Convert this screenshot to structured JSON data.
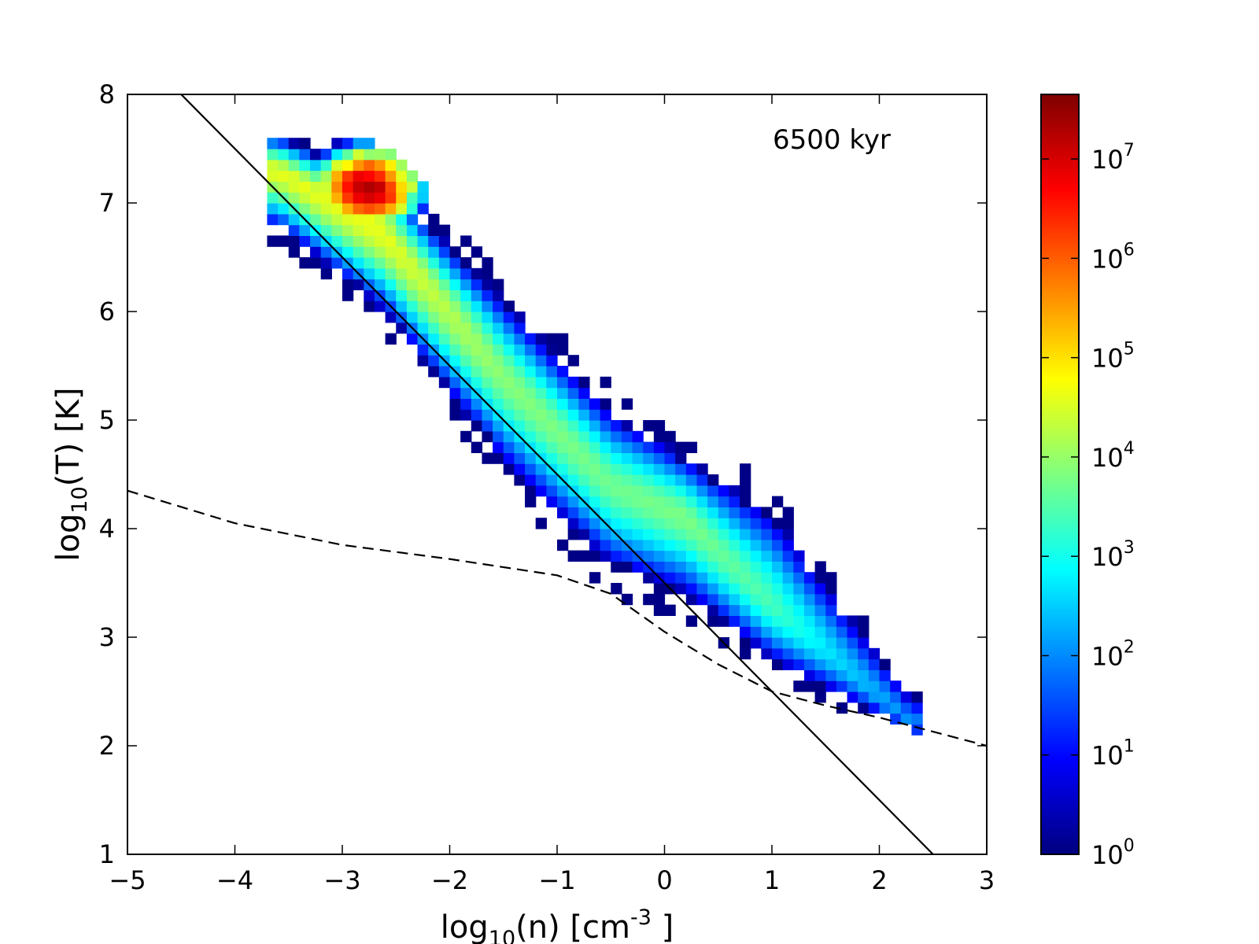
{
  "chart_data": {
    "type": "heatmap",
    "title": "",
    "annotation": "6500 kyr",
    "xlabel": {
      "base": "log",
      "sub": "10",
      "rest": "(n) [cm",
      "sup": "-3",
      "tail": " ]"
    },
    "ylabel": {
      "base": "log",
      "sub": "10",
      "rest": "(T) [K]"
    },
    "xlim": [
      -5,
      3
    ],
    "ylim": [
      1,
      8
    ],
    "xticks": [
      -5,
      -4,
      -3,
      -2,
      -1,
      0,
      1,
      2,
      3
    ],
    "xtick_labels": [
      "−5",
      "−4",
      "−3",
      "−2",
      "−1",
      "0",
      "1",
      "2",
      "3"
    ],
    "yticks": [
      1,
      2,
      3,
      4,
      5,
      6,
      7,
      8
    ],
    "ytick_labels": [
      "1",
      "2",
      "3",
      "4",
      "5",
      "6",
      "7",
      "8"
    ],
    "grid": false,
    "colorbar": {
      "scale": "log",
      "min_exponent": 0,
      "max_exponent": 7.65,
      "ticks": [
        {
          "base": "10",
          "exp": "0",
          "value": 0
        },
        {
          "base": "10",
          "exp": "1",
          "value": 1
        },
        {
          "base": "10",
          "exp": "2",
          "value": 2
        },
        {
          "base": "10",
          "exp": "3",
          "value": 3
        },
        {
          "base": "10",
          "exp": "4",
          "value": 4
        },
        {
          "base": "10",
          "exp": "5",
          "value": 5
        },
        {
          "base": "10",
          "exp": "6",
          "value": 6
        },
        {
          "base": "10",
          "exp": "7",
          "value": 7
        }
      ],
      "colormap": [
        "#00007f",
        "#0000ff",
        "#007fff",
        "#00ffff",
        "#7fff7f",
        "#ffff00",
        "#ff7f00",
        "#ff0000",
        "#7f0000"
      ]
    },
    "bin_size": [
      0.1,
      0.1
    ],
    "distribution": {
      "ridge": [
        [
          -3.6,
          7.3
        ],
        [
          -2.6,
          6.7
        ],
        [
          -1.5,
          5.4
        ],
        [
          -0.5,
          4.4
        ],
        [
          0.2,
          4.1
        ],
        [
          1.0,
          3.3
        ],
        [
          1.6,
          2.8
        ],
        [
          2.3,
          2.2
        ]
      ],
      "ridge_peak_log_count": [
        4.6,
        4.6,
        3.9,
        3.7,
        3.8,
        3.4,
        2.6,
        2.0
      ],
      "width_above": [
        0.35,
        0.55,
        0.75,
        0.72,
        0.6,
        0.9,
        0.6,
        0.25
      ],
      "width_below": [
        0.55,
        0.75,
        0.85,
        0.8,
        0.75,
        0.55,
        0.35,
        0.1
      ],
      "hot_peak": {
        "x": -2.75,
        "y": 7.15,
        "log_count": 7.3
      },
      "lower_edge_follows": "dashed"
    },
    "series": [
      {
        "style": "solid",
        "x": [
          -4.5,
          2.5
        ],
        "y": [
          8.0,
          1.0
        ]
      },
      {
        "style": "dashed",
        "x": [
          -5.0,
          -4.0,
          -3.0,
          -2.0,
          -1.0,
          -0.5,
          0.0,
          0.5,
          1.0,
          1.5,
          2.0,
          2.5,
          3.0
        ],
        "y": [
          4.35,
          4.05,
          3.85,
          3.72,
          3.57,
          3.4,
          3.05,
          2.75,
          2.5,
          2.37,
          2.26,
          2.13,
          2.0
        ]
      }
    ]
  }
}
